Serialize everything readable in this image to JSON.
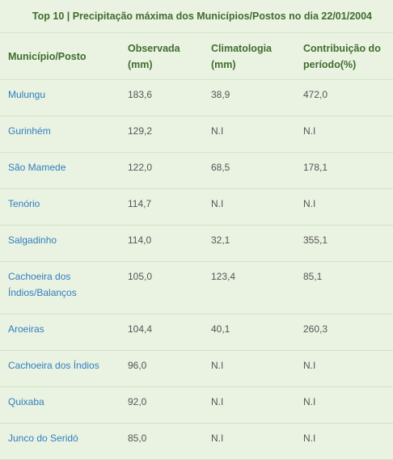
{
  "title": "Top 10 | Precipitação máxima dos Municípios/Postos no dia 22/01/2004",
  "headers": {
    "municipio": "Município/Posto",
    "observada_line1": "Observada",
    "observada_line2": "(mm)",
    "climatologia_line1": "Climatologia",
    "climatologia_line2": "(mm)",
    "contribuicao_line1": "Contribuição do",
    "contribuicao_line2": "período(%)"
  },
  "rows": [
    {
      "municipio": "Mulungu",
      "observada": "183,6",
      "climatologia": "38,9",
      "contribuicao": "472,0"
    },
    {
      "municipio": "Gurinhém",
      "observada": "129,2",
      "climatologia": "N.I",
      "contribuicao": "N.I"
    },
    {
      "municipio": "São Mamede",
      "observada": "122,0",
      "climatologia": "68,5",
      "contribuicao": "178,1"
    },
    {
      "municipio": "Tenório",
      "observada": "114,7",
      "climatologia": "N.I",
      "contribuicao": "N.I"
    },
    {
      "municipio": "Salgadinho",
      "observada": "114,0",
      "climatologia": "32,1",
      "contribuicao": "355,1"
    },
    {
      "municipio_line1": "Cachoeira dos",
      "municipio_line2": "Índios/Balanços",
      "observada": "105,0",
      "climatologia": "123,4",
      "contribuicao": "85,1"
    },
    {
      "municipio": "Aroeiras",
      "observada": "104,4",
      "climatologia": "40,1",
      "contribuicao": "260,3"
    },
    {
      "municipio": "Cachoeira dos Índios",
      "observada": "96,0",
      "climatologia": "N.I",
      "contribuicao": "N.I"
    },
    {
      "municipio": "Quixaba",
      "observada": "92,0",
      "climatologia": "N.I",
      "contribuicao": "N.I"
    },
    {
      "municipio": "Junco do Seridó",
      "observada": "85,0",
      "climatologia": "N.I",
      "contribuicao": "N.I"
    }
  ]
}
